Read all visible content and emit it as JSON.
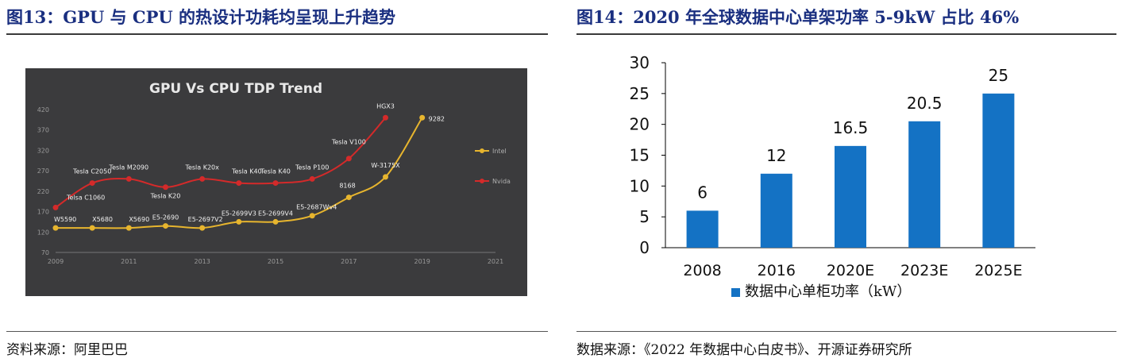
{
  "left_panel": {
    "title": "图13：GPU 与 CPU 的热设计功耗均呈现上升趋势",
    "source": "资料来源：阿里巴巴"
  },
  "right_panel": {
    "title": "图14：2020 年全球数据中心单架功率 5-9kW 占比 46%",
    "source": "数据来源：《2022 年数据中心白皮书》、开源证券研究所"
  },
  "chart_data": [
    {
      "type": "line",
      "title": "GPU Vs CPU TDP Trend",
      "xlabel": "",
      "ylabel": "",
      "xlim": [
        2009,
        2021
      ],
      "ylim": [
        70,
        420
      ],
      "x_ticks": [
        2009,
        2011,
        2013,
        2015,
        2017,
        2019,
        2021
      ],
      "y_ticks": [
        70,
        120,
        170,
        220,
        270,
        320,
        370,
        420
      ],
      "grid": false,
      "legend": "right",
      "series": [
        {
          "name": "Intel",
          "color": "#e7b52e",
          "points": [
            {
              "x": 2009,
              "y": 130,
              "label": "W5590"
            },
            {
              "x": 2010,
              "y": 130,
              "label": "X5680"
            },
            {
              "x": 2011,
              "y": 130,
              "label": "X5690"
            },
            {
              "x": 2012,
              "y": 135,
              "label": "E5-2690"
            },
            {
              "x": 2013,
              "y": 130,
              "label": "E5-2697V2"
            },
            {
              "x": 2014,
              "y": 145,
              "label": "E5-2699V3"
            },
            {
              "x": 2015,
              "y": 145,
              "label": "E5-2699V4"
            },
            {
              "x": 2016,
              "y": 160,
              "label": "E5-2687Wv4"
            },
            {
              "x": 2017,
              "y": 205,
              "label": "8168"
            },
            {
              "x": 2018,
              "y": 255,
              "label": "W-3175X"
            },
            {
              "x": 2019,
              "y": 400,
              "label": "9282"
            }
          ]
        },
        {
          "name": "Nvida",
          "color": "#d42a2a",
          "points": [
            {
              "x": 2009,
              "y": 180,
              "label": "Telsa C1060"
            },
            {
              "x": 2010,
              "y": 240,
              "label": "Tesla C2050"
            },
            {
              "x": 2011,
              "y": 250,
              "label": "Tesla M2090"
            },
            {
              "x": 2012,
              "y": 230,
              "label": "Tesla K20"
            },
            {
              "x": 2013,
              "y": 250,
              "label": "Tesla K20x"
            },
            {
              "x": 2014,
              "y": 240,
              "label": "Tesla K40"
            },
            {
              "x": 2015,
              "y": 240,
              "label": "Tesla K40"
            },
            {
              "x": 2016,
              "y": 250,
              "label": "Tesla P100"
            },
            {
              "x": 2017,
              "y": 300,
              "label": "Tesla V100"
            },
            {
              "x": 2018,
              "y": 400,
              "label": "HGX3"
            }
          ]
        }
      ]
    },
    {
      "type": "bar",
      "title": "",
      "xlabel": "",
      "ylabel": "",
      "categories": [
        "2008",
        "2016",
        "2020E",
        "2023E",
        "2025E"
      ],
      "ylim": [
        0,
        30
      ],
      "y_ticks": [
        0,
        5,
        10,
        15,
        20,
        25,
        30
      ],
      "grid": false,
      "legend": "bottom",
      "series": [
        {
          "name": "数据中心单柜功率（kW）",
          "color": "#1472c4",
          "values": [
            6,
            12,
            16.5,
            20.5,
            25
          ]
        }
      ]
    }
  ]
}
